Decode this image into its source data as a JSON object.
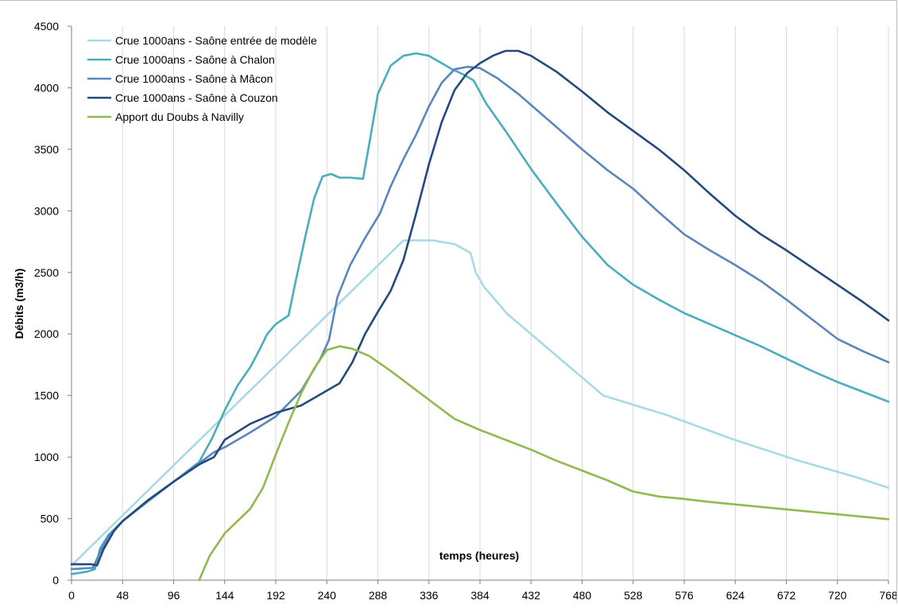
{
  "chart_data": {
    "type": "line",
    "title": "",
    "xlabel": "temps (heures)",
    "ylabel": "Débits (m3/h)",
    "xlim": [
      0,
      768
    ],
    "ylim": [
      0,
      4500
    ],
    "xticks": [
      0,
      48,
      96,
      144,
      192,
      240,
      288,
      336,
      384,
      432,
      480,
      528,
      576,
      624,
      672,
      720,
      768
    ],
    "yticks": [
      0,
      500,
      1000,
      1500,
      2000,
      2500,
      3000,
      3500,
      4000,
      4500
    ],
    "grid": "vertical",
    "legend": "top-left",
    "series": [
      {
        "name": "Crue 1000ans - Saône entrée de modèle",
        "color": "#a9d8e6",
        "points": [
          [
            0,
            120
          ],
          [
            312,
            2760
          ],
          [
            340,
            2760
          ],
          [
            360,
            2730
          ],
          [
            375,
            2660
          ],
          [
            380,
            2500
          ],
          [
            388,
            2380
          ],
          [
            410,
            2160
          ],
          [
            440,
            1940
          ],
          [
            500,
            1500
          ],
          [
            560,
            1340
          ],
          [
            620,
            1150
          ],
          [
            680,
            980
          ],
          [
            740,
            830
          ],
          [
            768,
            750
          ]
        ]
      },
      {
        "name": "Crue 1000ans - Saône à Chalon",
        "color": "#4aacbf",
        "points": [
          [
            0,
            50
          ],
          [
            15,
            70
          ],
          [
            22,
            90
          ],
          [
            27,
            260
          ],
          [
            35,
            370
          ],
          [
            48,
            480
          ],
          [
            60,
            560
          ],
          [
            72,
            640
          ],
          [
            96,
            800
          ],
          [
            120,
            960
          ],
          [
            132,
            1150
          ],
          [
            144,
            1380
          ],
          [
            156,
            1580
          ],
          [
            168,
            1730
          ],
          [
            176,
            1860
          ],
          [
            184,
            2000
          ],
          [
            192,
            2080
          ],
          [
            204,
            2150
          ],
          [
            210,
            2400
          ],
          [
            220,
            2800
          ],
          [
            228,
            3100
          ],
          [
            236,
            3280
          ],
          [
            244,
            3300
          ],
          [
            252,
            3270
          ],
          [
            262,
            3270
          ],
          [
            274,
            3260
          ],
          [
            280,
            3550
          ],
          [
            288,
            3950
          ],
          [
            300,
            4180
          ],
          [
            312,
            4260
          ],
          [
            324,
            4280
          ],
          [
            336,
            4260
          ],
          [
            348,
            4200
          ],
          [
            358,
            4150
          ],
          [
            368,
            4110
          ],
          [
            378,
            4060
          ],
          [
            390,
            3870
          ],
          [
            408,
            3650
          ],
          [
            432,
            3340
          ],
          [
            456,
            3060
          ],
          [
            480,
            2790
          ],
          [
            504,
            2560
          ],
          [
            528,
            2400
          ],
          [
            552,
            2280
          ],
          [
            576,
            2170
          ],
          [
            600,
            2080
          ],
          [
            624,
            1990
          ],
          [
            648,
            1900
          ],
          [
            672,
            1800
          ],
          [
            696,
            1700
          ],
          [
            720,
            1610
          ],
          [
            744,
            1530
          ],
          [
            768,
            1450
          ]
        ]
      },
      {
        "name": "Crue 1000ans - Saône à Mâcon",
        "color": "#5b86bd",
        "points": [
          [
            0,
            90
          ],
          [
            20,
            100
          ],
          [
            27,
            230
          ],
          [
            35,
            360
          ],
          [
            48,
            480
          ],
          [
            72,
            650
          ],
          [
            96,
            800
          ],
          [
            120,
            950
          ],
          [
            134,
            1040
          ],
          [
            144,
            1080
          ],
          [
            168,
            1200
          ],
          [
            192,
            1330
          ],
          [
            216,
            1540
          ],
          [
            234,
            1800
          ],
          [
            242,
            1950
          ],
          [
            250,
            2300
          ],
          [
            262,
            2560
          ],
          [
            276,
            2780
          ],
          [
            290,
            2980
          ],
          [
            300,
            3200
          ],
          [
            312,
            3420
          ],
          [
            324,
            3620
          ],
          [
            336,
            3850
          ],
          [
            348,
            4040
          ],
          [
            360,
            4150
          ],
          [
            372,
            4170
          ],
          [
            384,
            4160
          ],
          [
            400,
            4080
          ],
          [
            420,
            3950
          ],
          [
            432,
            3860
          ],
          [
            456,
            3680
          ],
          [
            480,
            3500
          ],
          [
            504,
            3330
          ],
          [
            528,
            3180
          ],
          [
            552,
            2990
          ],
          [
            576,
            2810
          ],
          [
            600,
            2680
          ],
          [
            624,
            2560
          ],
          [
            648,
            2430
          ],
          [
            672,
            2280
          ],
          [
            696,
            2120
          ],
          [
            720,
            1960
          ],
          [
            744,
            1860
          ],
          [
            768,
            1770
          ]
        ]
      },
      {
        "name": "Crue 1000ans - Saône à Couzon",
        "color": "#25497e",
        "points": [
          [
            0,
            130
          ],
          [
            18,
            130
          ],
          [
            24,
            120
          ],
          [
            30,
            250
          ],
          [
            40,
            400
          ],
          [
            48,
            480
          ],
          [
            72,
            650
          ],
          [
            96,
            800
          ],
          [
            120,
            940
          ],
          [
            134,
            1000
          ],
          [
            144,
            1140
          ],
          [
            168,
            1270
          ],
          [
            192,
            1360
          ],
          [
            216,
            1420
          ],
          [
            240,
            1540
          ],
          [
            252,
            1600
          ],
          [
            264,
            1770
          ],
          [
            276,
            2000
          ],
          [
            288,
            2180
          ],
          [
            300,
            2350
          ],
          [
            312,
            2600
          ],
          [
            324,
            2980
          ],
          [
            336,
            3380
          ],
          [
            348,
            3720
          ],
          [
            360,
            3980
          ],
          [
            372,
            4120
          ],
          [
            384,
            4200
          ],
          [
            396,
            4260
          ],
          [
            408,
            4300
          ],
          [
            420,
            4300
          ],
          [
            432,
            4260
          ],
          [
            456,
            4130
          ],
          [
            480,
            3970
          ],
          [
            504,
            3800
          ],
          [
            528,
            3650
          ],
          [
            552,
            3500
          ],
          [
            576,
            3330
          ],
          [
            600,
            3140
          ],
          [
            624,
            2960
          ],
          [
            648,
            2810
          ],
          [
            672,
            2680
          ],
          [
            696,
            2540
          ],
          [
            720,
            2400
          ],
          [
            744,
            2260
          ],
          [
            768,
            2110
          ]
        ]
      },
      {
        "name": "Apport du Doubs à Navilly",
        "color": "#92b94e",
        "points": [
          [
            120,
            0
          ],
          [
            130,
            200
          ],
          [
            144,
            380
          ],
          [
            156,
            480
          ],
          [
            168,
            580
          ],
          [
            180,
            750
          ],
          [
            192,
            1020
          ],
          [
            204,
            1280
          ],
          [
            216,
            1520
          ],
          [
            228,
            1720
          ],
          [
            240,
            1870
          ],
          [
            252,
            1900
          ],
          [
            264,
            1880
          ],
          [
            280,
            1820
          ],
          [
            300,
            1700
          ],
          [
            320,
            1570
          ],
          [
            340,
            1440
          ],
          [
            360,
            1310
          ],
          [
            384,
            1220
          ],
          [
            408,
            1140
          ],
          [
            432,
            1060
          ],
          [
            456,
            970
          ],
          [
            480,
            890
          ],
          [
            504,
            810
          ],
          [
            528,
            720
          ],
          [
            552,
            680
          ],
          [
            576,
            660
          ],
          [
            600,
            635
          ],
          [
            624,
            615
          ],
          [
            648,
            595
          ],
          [
            672,
            575
          ],
          [
            696,
            555
          ],
          [
            720,
            535
          ],
          [
            744,
            515
          ],
          [
            768,
            495
          ]
        ]
      }
    ]
  }
}
